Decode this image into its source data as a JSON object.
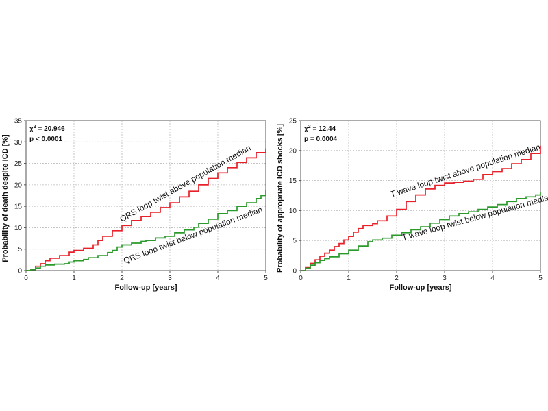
{
  "chart_data": [
    {
      "type": "line",
      "xlabel": "Follow-up [years]",
      "ylabel": "Probability of death despite ICD [%]",
      "xlim": [
        0,
        5
      ],
      "ylim": [
        0,
        35
      ],
      "xticks": [
        "0",
        "1",
        "2",
        "3",
        "4",
        "5"
      ],
      "yticks": [
        "0",
        "5",
        "10",
        "15",
        "20",
        "25",
        "30",
        "35"
      ],
      "grid": true,
      "stats": {
        "chi_prefix": "χ",
        "chi_exp": "2",
        "chi_value": "=  20.946",
        "p": "p   < 0.0001"
      },
      "series": [
        {
          "name": "QRS loop twist above population median",
          "color": "#e8202a",
          "points": [
            [
              0,
              0
            ],
            [
              0.1,
              0.3
            ],
            [
              0.2,
              1.0
            ],
            [
              0.3,
              1.6
            ],
            [
              0.4,
              2.3
            ],
            [
              0.5,
              2.9
            ],
            [
              0.7,
              3.5
            ],
            [
              0.9,
              4.3
            ],
            [
              1.0,
              4.7
            ],
            [
              1.2,
              5.2
            ],
            [
              1.4,
              6.0
            ],
            [
              1.5,
              7.0
            ],
            [
              1.6,
              8.0
            ],
            [
              1.8,
              9.3
            ],
            [
              2.0,
              10.5
            ],
            [
              2.2,
              11.7
            ],
            [
              2.4,
              12.6
            ],
            [
              2.6,
              13.6
            ],
            [
              2.8,
              14.7
            ],
            [
              3.0,
              15.8
            ],
            [
              3.2,
              17.2
            ],
            [
              3.4,
              18.5
            ],
            [
              3.6,
              20.0
            ],
            [
              3.8,
              21.5
            ],
            [
              4.0,
              22.8
            ],
            [
              4.2,
              24.0
            ],
            [
              4.4,
              25.2
            ],
            [
              4.6,
              26.3
            ],
            [
              4.8,
              27.5
            ],
            [
              5.0,
              28.5
            ]
          ]
        },
        {
          "name": "QRS loop twist below population median",
          "color": "#2a9a2a",
          "points": [
            [
              0,
              0
            ],
            [
              0.1,
              0.2
            ],
            [
              0.2,
              0.6
            ],
            [
              0.3,
              1.0
            ],
            [
              0.4,
              1.3
            ],
            [
              0.6,
              1.5
            ],
            [
              0.8,
              1.6
            ],
            [
              0.9,
              2.0
            ],
            [
              1.0,
              2.3
            ],
            [
              1.2,
              2.6
            ],
            [
              1.3,
              3.0
            ],
            [
              1.5,
              3.5
            ],
            [
              1.7,
              4.2
            ],
            [
              1.8,
              4.7
            ],
            [
              1.9,
              5.5
            ],
            [
              2.0,
              6.0
            ],
            [
              2.2,
              6.4
            ],
            [
              2.4,
              6.8
            ],
            [
              2.5,
              7.0
            ],
            [
              2.7,
              7.6
            ],
            [
              2.9,
              8.0
            ],
            [
              3.1,
              8.8
            ],
            [
              3.3,
              9.5
            ],
            [
              3.5,
              10.1
            ],
            [
              3.6,
              11.0
            ],
            [
              3.8,
              12.0
            ],
            [
              4.0,
              13.3
            ],
            [
              4.2,
              14.0
            ],
            [
              4.4,
              15.0
            ],
            [
              4.6,
              15.8
            ],
            [
              4.8,
              16.8
            ],
            [
              4.9,
              17.5
            ],
            [
              5.0,
              18.7
            ]
          ]
        }
      ],
      "annotations": [
        {
          "text": "QRS loop twist above population median",
          "series_index": 0,
          "at_x": 3.35,
          "offset": -10
        },
        {
          "text": "QRS loop twist below population median",
          "series_index": 1,
          "at_x": 3.5,
          "offset": 15
        }
      ]
    },
    {
      "type": "line",
      "xlabel": "Follow-up [years]",
      "ylabel": "Probability of appropriate ICD shocks [%]",
      "xlim": [
        0,
        5
      ],
      "ylim": [
        0,
        25
      ],
      "xticks": [
        "0",
        "1",
        "2",
        "3",
        "4",
        "5"
      ],
      "yticks": [
        "0",
        "5",
        "10",
        "15",
        "20",
        "25"
      ],
      "grid": true,
      "stats": {
        "chi_prefix": "χ",
        "chi_exp": "2",
        "chi_value": "=  12.44",
        "p": "p = 0.0004"
      },
      "series": [
        {
          "name": "T wave loop twist above population median",
          "color": "#e8202a",
          "points": [
            [
              0,
              0
            ],
            [
              0.1,
              0.5
            ],
            [
              0.2,
              1.2
            ],
            [
              0.3,
              1.8
            ],
            [
              0.4,
              2.4
            ],
            [
              0.5,
              2.9
            ],
            [
              0.6,
              3.4
            ],
            [
              0.7,
              4.0
            ],
            [
              0.8,
              4.5
            ],
            [
              0.9,
              5.1
            ],
            [
              1.0,
              5.7
            ],
            [
              1.1,
              6.4
            ],
            [
              1.2,
              7.0
            ],
            [
              1.3,
              7.5
            ],
            [
              1.5,
              7.8
            ],
            [
              1.6,
              8.3
            ],
            [
              1.8,
              9.1
            ],
            [
              2.0,
              10.2
            ],
            [
              2.2,
              11.5
            ],
            [
              2.4,
              12.6
            ],
            [
              2.6,
              13.6
            ],
            [
              2.8,
              14.2
            ],
            [
              3.0,
              14.6
            ],
            [
              3.2,
              14.7
            ],
            [
              3.4,
              14.9
            ],
            [
              3.6,
              15.2
            ],
            [
              3.8,
              16.0
            ],
            [
              4.0,
              16.5
            ],
            [
              4.2,
              17.0
            ],
            [
              4.4,
              17.8
            ],
            [
              4.6,
              18.5
            ],
            [
              4.8,
              19.5
            ],
            [
              5.0,
              20.8
            ]
          ]
        },
        {
          "name": "T wave loop twist below population median",
          "color": "#2a9a2a",
          "points": [
            [
              0,
              0
            ],
            [
              0.1,
              0.4
            ],
            [
              0.2,
              0.9
            ],
            [
              0.3,
              1.3
            ],
            [
              0.4,
              1.7
            ],
            [
              0.5,
              2.0
            ],
            [
              0.6,
              2.3
            ],
            [
              0.8,
              2.8
            ],
            [
              1.0,
              3.4
            ],
            [
              1.2,
              4.1
            ],
            [
              1.4,
              4.8
            ],
            [
              1.5,
              5.1
            ],
            [
              1.7,
              5.4
            ],
            [
              1.9,
              5.9
            ],
            [
              2.1,
              6.3
            ],
            [
              2.3,
              6.8
            ],
            [
              2.5,
              7.3
            ],
            [
              2.7,
              7.9
            ],
            [
              2.9,
              8.5
            ],
            [
              3.1,
              9.1
            ],
            [
              3.3,
              9.5
            ],
            [
              3.5,
              9.8
            ],
            [
              3.7,
              10.2
            ],
            [
              3.9,
              10.6
            ],
            [
              4.1,
              11.0
            ],
            [
              4.3,
              11.5
            ],
            [
              4.5,
              12.0
            ],
            [
              4.7,
              12.3
            ],
            [
              4.9,
              12.6
            ],
            [
              5.0,
              13.0
            ]
          ]
        }
      ],
      "annotations": [
        {
          "text": "T wave loop twist above population median",
          "series_index": 0,
          "at_x": 3.45,
          "offset": -11
        },
        {
          "text": "T wave loop twist below population median",
          "series_index": 1,
          "at_x": 3.7,
          "offset": 15
        }
      ]
    }
  ]
}
